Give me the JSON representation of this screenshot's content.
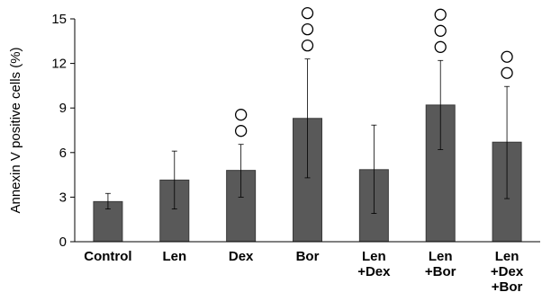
{
  "chart_data": {
    "type": "bar",
    "title": "",
    "xlabel": "",
    "ylabel": "Annexin V positive cells (%)",
    "ylim": [
      0,
      15
    ],
    "yticks": [
      "0",
      "3",
      "6",
      "9",
      "12",
      "15"
    ],
    "grid": false,
    "legend": "none",
    "bar_color": "#595959",
    "categories": [
      [
        "Control"
      ],
      [
        "Len"
      ],
      [
        "Dex"
      ],
      [
        "Bor"
      ],
      [
        "Len",
        "+Dex"
      ],
      [
        "Len",
        "+Bor"
      ],
      [
        "Len",
        "+Dex",
        "+Bor"
      ]
    ],
    "values": [
      2.7,
      4.15,
      4.8,
      8.3,
      4.85,
      9.2,
      6.7
    ],
    "error_low": [
      2.2,
      2.2,
      3.0,
      4.3,
      1.9,
      6.2,
      2.9
    ],
    "error_high": [
      3.25,
      6.1,
      6.55,
      12.3,
      7.85,
      12.2,
      10.45
    ],
    "significance_marks": [
      0,
      0,
      2,
      3,
      0,
      3,
      2
    ],
    "significance_symbol": "○"
  }
}
